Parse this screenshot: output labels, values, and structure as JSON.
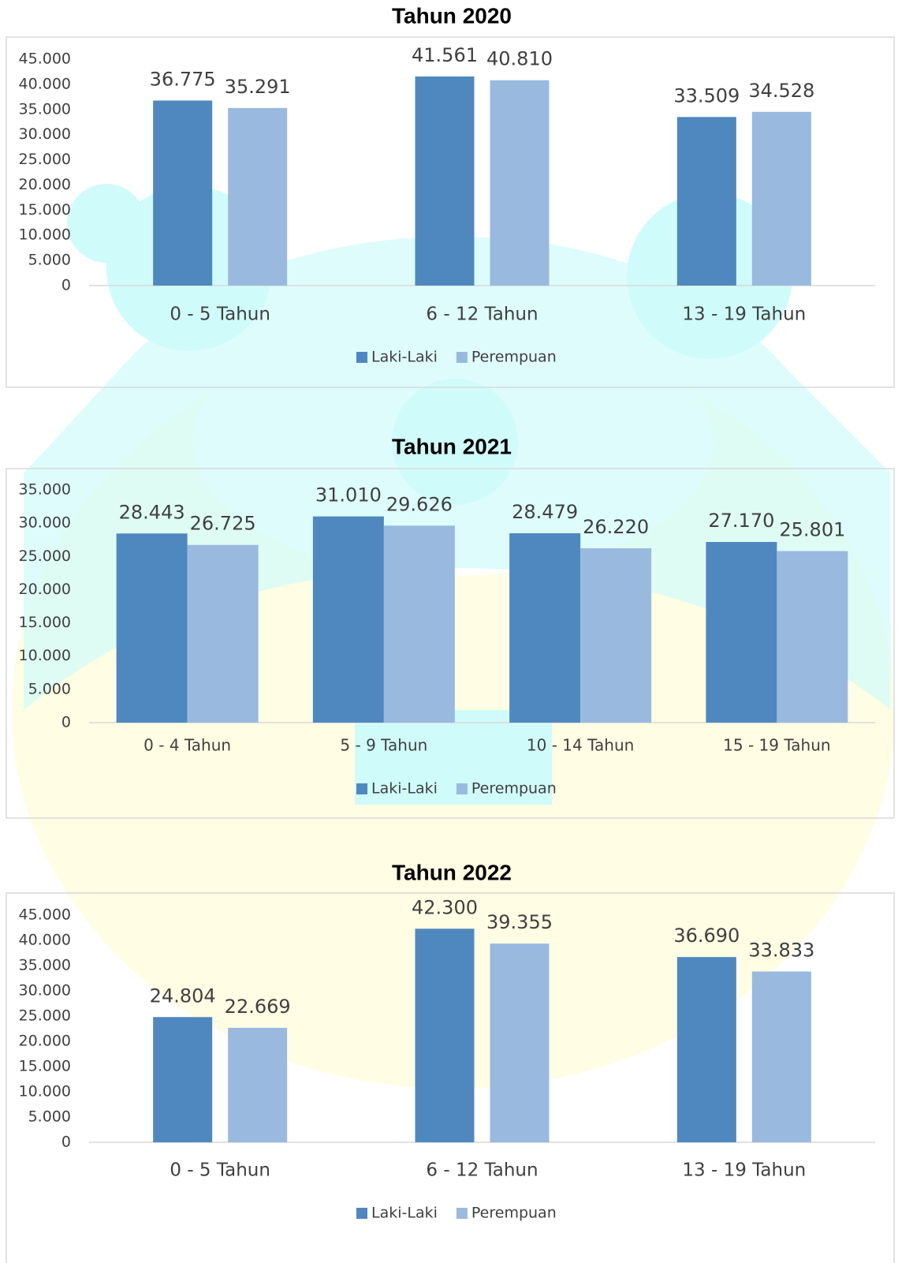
{
  "chart_data": [
    {
      "type": "bar",
      "title": "Tahun 2020",
      "categories": [
        "0 - 5 Tahun",
        "6 - 12 Tahun",
        "13 - 19 Tahun"
      ],
      "series": [
        {
          "name": "Laki-Laki",
          "color": "#4f88bf",
          "values": [
            36775,
            41561,
            33509
          ],
          "value_labels": [
            "36.775",
            "41.561",
            "33.509"
          ]
        },
        {
          "name": "Perempuan",
          "color": "#9ab9df",
          "values": [
            35291,
            40810,
            34528
          ],
          "value_labels": [
            "35.291",
            "40.810",
            "34.528"
          ]
        }
      ],
      "ylim": [
        0,
        45000
      ],
      "yticks": [
        0,
        {
          "value": 5000,
          "label": "5.000"
        },
        {
          "value": 10000,
          "label": "10.000"
        },
        {
          "value": 15000,
          "label": "15.000"
        },
        {
          "value": 20000,
          "label": "20.000"
        },
        {
          "value": 25000,
          "label": "25.000"
        },
        {
          "value": 30000,
          "label": "30.000"
        },
        {
          "value": 35000,
          "label": "35.000"
        },
        {
          "value": 40000,
          "label": "40.000"
        },
        {
          "value": 45000,
          "label": "45.000"
        }
      ],
      "legend": "bottom"
    },
    {
      "type": "bar",
      "title": "Tahun 2021",
      "categories": [
        "0 - 4 Tahun",
        "5 - 9 Tahun",
        "10 - 14 Tahun",
        "15 - 19 Tahun"
      ],
      "series": [
        {
          "name": "Laki-Laki",
          "color": "#4f88bf",
          "values": [
            28443,
            31010,
            28479,
            27170
          ],
          "value_labels": [
            "28.443",
            "31.010",
            "28.479",
            "27.170"
          ]
        },
        {
          "name": "Perempuan",
          "color": "#9ab9df",
          "values": [
            26725,
            29626,
            26220,
            25801
          ],
          "value_labels": [
            "26.725",
            "29.626",
            "26.220",
            "25.801"
          ]
        }
      ],
      "ylim": [
        0,
        35000
      ],
      "yticks": [
        0,
        {
          "value": 5000,
          "label": "5.000"
        },
        {
          "value": 10000,
          "label": "10.000"
        },
        {
          "value": 15000,
          "label": "15.000"
        },
        {
          "value": 20000,
          "label": "20.000"
        },
        {
          "value": 25000,
          "label": "25.000"
        },
        {
          "value": 30000,
          "label": "30.000"
        },
        {
          "value": 35000,
          "label": "35.000"
        }
      ],
      "legend": "bottom"
    },
    {
      "type": "bar",
      "title": "Tahun 2022",
      "categories": [
        "0 - 5 Tahun",
        "6 - 12 Tahun",
        "13 - 19 Tahun"
      ],
      "series": [
        {
          "name": "Laki-Laki",
          "color": "#4f88bf",
          "values": [
            24804,
            42300,
            36690
          ],
          "value_labels": [
            "24.804",
            "42.300",
            "36.690"
          ]
        },
        {
          "name": "Perempuan",
          "color": "#9ab9df",
          "values": [
            22669,
            39355,
            33833
          ],
          "value_labels": [
            "22.669",
            "39.355",
            "33.833"
          ]
        }
      ],
      "ylim": [
        0,
        45000
      ],
      "yticks": [
        0,
        {
          "value": 5000,
          "label": "5.000"
        },
        {
          "value": 10000,
          "label": "10.000"
        },
        {
          "value": 15000,
          "label": "15.000"
        },
        {
          "value": 20000,
          "label": "20.000"
        },
        {
          "value": 25000,
          "label": "25.000"
        },
        {
          "value": 30000,
          "label": "30.000"
        },
        {
          "value": 35000,
          "label": "35.000"
        },
        {
          "value": 40000,
          "label": "40.000"
        },
        {
          "value": 45000,
          "label": "45.000"
        }
      ],
      "legend": "bottom"
    }
  ]
}
